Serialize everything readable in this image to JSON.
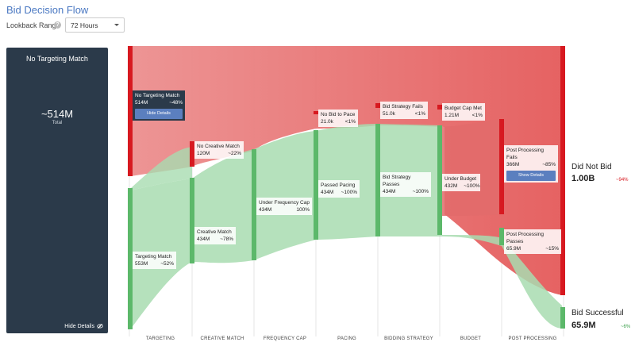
{
  "header": {
    "title": "Bid Decision Flow"
  },
  "lookback": {
    "label": "Lookback Range",
    "selected": "72 Hours"
  },
  "side_panel": {
    "title": "No Targeting Match",
    "value": "~514M",
    "total_label": "Total",
    "hide_label": "Hide Details"
  },
  "stages": [
    "TARGETING",
    "CREATIVE MATCH",
    "FREQUENCY CAP",
    "PACING",
    "BIDDING STRATEGY",
    "BUDGET",
    "POST PROCESSING"
  ],
  "nodes": {
    "no_targeting_match": {
      "name": "No Targeting Match",
      "value": "514M",
      "pct": "~48%",
      "button": "Hide Details"
    },
    "targeting_match": {
      "name": "Targeting Match",
      "value": "553M",
      "pct": "~52%"
    },
    "no_creative_match": {
      "name": "No Creative Match",
      "value": "120M",
      "pct": "~22%"
    },
    "creative_match": {
      "name": "Creative Match",
      "value": "434M",
      "pct": "~78%"
    },
    "under_frequency_cap": {
      "name": "Under Frequency Cap",
      "value": "434M",
      "pct": "100%"
    },
    "no_bid_to_pace": {
      "name": "No Bid to Pace",
      "value": "21.0k",
      "pct": "<1%"
    },
    "passed_pacing": {
      "name": "Passed Pacing",
      "value": "434M",
      "pct": "~100%"
    },
    "bid_strategy_fails": {
      "name": "Bid Strategy Fails",
      "value": "51.0k",
      "pct": "<1%"
    },
    "bid_strategy_passes": {
      "name": "Bid Strategy Passes",
      "value": "434M",
      "pct": "~100%"
    },
    "budget_cap_met": {
      "name": "Budget Cap Met",
      "value": "1.21M",
      "pct": "<1%"
    },
    "under_budget": {
      "name": "Under Budget",
      "value": "432M",
      "pct": "~100%"
    },
    "post_processing_fails": {
      "name": "Post Processing Fails",
      "value": "366M",
      "pct": "~85%",
      "button": "Show Details"
    },
    "post_processing_passes": {
      "name": "Post Processing Passes",
      "value": "65.9M",
      "pct": "~15%"
    }
  },
  "outcomes": {
    "did_not_bid": {
      "title": "Did Not Bid",
      "value": "1.00B",
      "pct": "~94%"
    },
    "bid_successful": {
      "title": "Bid Successful",
      "value": "65.9M",
      "pct": "~6%"
    }
  },
  "colors": {
    "fail": "#e0413f",
    "fail_flow": "#eb7e7e",
    "pass": "#5cb86a",
    "pass_flow": "#9fd9a8",
    "panel": "#2b3a4a",
    "accent": "#4a78c2"
  }
}
